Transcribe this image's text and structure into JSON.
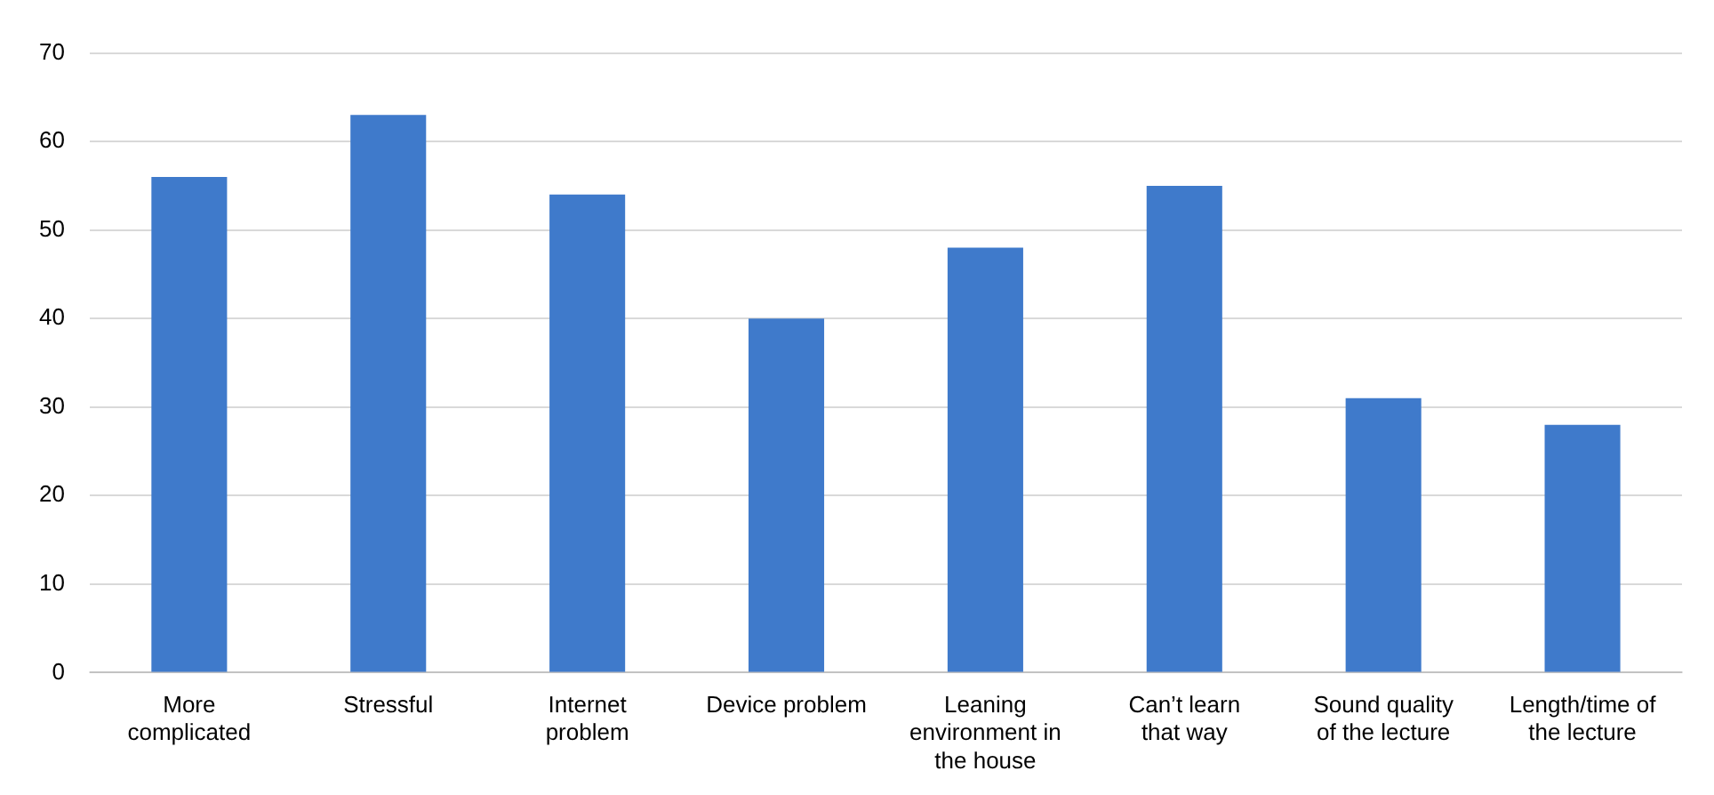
{
  "chart_data": {
    "type": "bar",
    "categories": [
      "More complicated",
      "Stressful",
      "Internet problem",
      "Device problem",
      "Leaning environment in the house",
      "Can’t learn that way",
      "Sound quality of the lecture",
      "Length/time of the lecture"
    ],
    "values": [
      56,
      63,
      54,
      40,
      48,
      55,
      31,
      28
    ],
    "color": "#3f7acb",
    "ylim": [
      0,
      70
    ],
    "yticks": [
      0,
      10,
      20,
      30,
      40,
      50,
      60,
      70
    ],
    "grid": "y",
    "legend": false
  }
}
